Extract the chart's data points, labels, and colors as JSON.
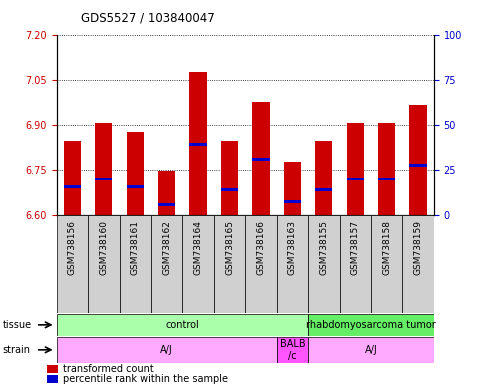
{
  "title": "GDS5527 / 103840047",
  "samples": [
    "GSM738156",
    "GSM738160",
    "GSM738161",
    "GSM738162",
    "GSM738164",
    "GSM738165",
    "GSM738166",
    "GSM738163",
    "GSM738155",
    "GSM738157",
    "GSM738158",
    "GSM738159"
  ],
  "bar_tops": [
    6.845,
    6.905,
    6.875,
    6.745,
    7.075,
    6.845,
    6.975,
    6.775,
    6.845,
    6.905,
    6.905,
    6.965
  ],
  "bar_bottoms": [
    6.6,
    6.6,
    6.6,
    6.6,
    6.6,
    6.6,
    6.6,
    6.6,
    6.6,
    6.6,
    6.6,
    6.6
  ],
  "percentile_values": [
    6.695,
    6.72,
    6.695,
    6.635,
    6.835,
    6.685,
    6.785,
    6.645,
    6.685,
    6.72,
    6.72,
    6.765
  ],
  "ylim_left": [
    6.6,
    7.2
  ],
  "yticks_left": [
    6.6,
    6.75,
    6.9,
    7.05,
    7.2
  ],
  "yticks_right": [
    0,
    25,
    50,
    75,
    100
  ],
  "bar_color": "#cc0000",
  "percentile_color": "#0000cc",
  "tissue_groups": [
    {
      "label": "control",
      "start": 0,
      "end": 8,
      "color": "#aaffaa"
    },
    {
      "label": "rhabdomyosarcoma tumor",
      "start": 8,
      "end": 12,
      "color": "#66ee66"
    }
  ],
  "strain_groups": [
    {
      "label": "A/J",
      "start": 0,
      "end": 7,
      "color": "#ffaaff"
    },
    {
      "label": "BALB\n/c",
      "start": 7,
      "end": 8,
      "color": "#ff55ff"
    },
    {
      "label": "A/J",
      "start": 8,
      "end": 12,
      "color": "#ffaaff"
    }
  ],
  "xticklabel_bg": "#d0d0d0",
  "background_color": "#ffffff",
  "tick_label_size": 7,
  "bar_width": 0.55
}
